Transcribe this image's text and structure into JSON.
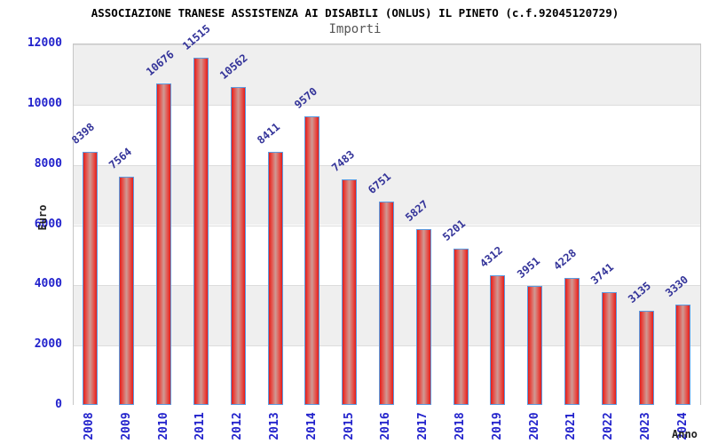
{
  "chart_data": {
    "type": "bar",
    "title": "ASSOCIAZIONE TRANESE ASSISTENZA AI DISABILI (ONLUS) IL PINETO (c.f.92045120729)",
    "subtitle": "Importi",
    "xlabel": "Anno",
    "ylabel": "Euro",
    "categories": [
      "2008",
      "2009",
      "2010",
      "2011",
      "2012",
      "2013",
      "2014",
      "2015",
      "2016",
      "2017",
      "2018",
      "2019",
      "2020",
      "2021",
      "2022",
      "2023",
      "2024"
    ],
    "values": [
      8398,
      7564,
      10676,
      11515,
      10562,
      8411,
      9570,
      7483,
      6751,
      5827,
      5201,
      4312,
      3951,
      4228,
      3741,
      3135,
      3330
    ],
    "ylim": [
      0,
      12000
    ],
    "yticks": [
      0,
      2000,
      4000,
      6000,
      8000,
      10000,
      12000
    ],
    "grid": "horizontal-bands",
    "legend": "none",
    "colors": {
      "axis_text": "#2222cc",
      "value_label": "#333399",
      "bar_border": "#5b9be0",
      "bar_fill_edge": "#e31d1a",
      "bar_fill_center": "#cf9a94",
      "band_gray": "#efefef",
      "band_white": "#ffffff",
      "title_text": "#000000",
      "subtitle_text": "#555555",
      "axis_title_text": "#222222",
      "plot_border": "#c6c6c6"
    }
  }
}
